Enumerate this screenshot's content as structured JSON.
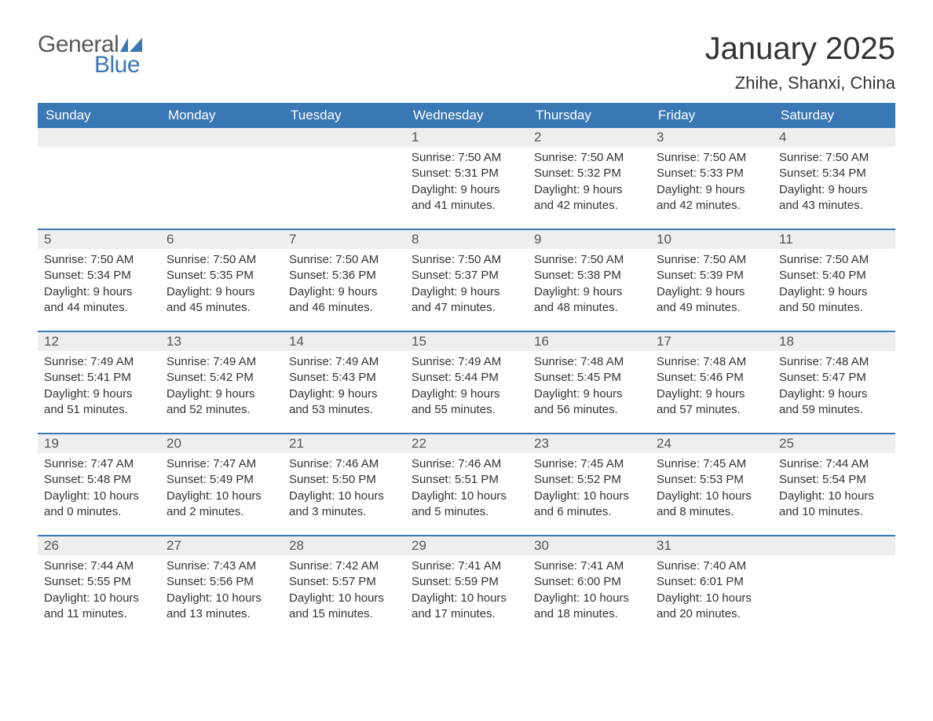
{
  "logo": {
    "text1": "General",
    "text2": "Blue",
    "color_general": "#5a5a5a",
    "color_blue": "#3a77b5"
  },
  "title": "January 2025",
  "location": "Zhihe, Shanxi, China",
  "colors": {
    "header_bg": "#3a77b5",
    "header_text": "#ffffff",
    "daynum_bg": "#eeeeee",
    "daynum_text": "#555555",
    "body_text": "#333333",
    "week_sep": "#3a77b5",
    "page_bg": "#ffffff"
  },
  "fonts": {
    "title_pt": 40,
    "location_pt": 22,
    "dayhead_pt": 17,
    "daynum_pt": 17,
    "body_pt": 15
  },
  "day_headers": [
    "Sunday",
    "Monday",
    "Tuesday",
    "Wednesday",
    "Thursday",
    "Friday",
    "Saturday"
  ],
  "weeks": [
    [
      {
        "day": "",
        "sunrise": "",
        "sunset": "",
        "daylight1": "",
        "daylight2": ""
      },
      {
        "day": "",
        "sunrise": "",
        "sunset": "",
        "daylight1": "",
        "daylight2": ""
      },
      {
        "day": "",
        "sunrise": "",
        "sunset": "",
        "daylight1": "",
        "daylight2": ""
      },
      {
        "day": "1",
        "sunrise": "Sunrise: 7:50 AM",
        "sunset": "Sunset: 5:31 PM",
        "daylight1": "Daylight: 9 hours",
        "daylight2": "and 41 minutes."
      },
      {
        "day": "2",
        "sunrise": "Sunrise: 7:50 AM",
        "sunset": "Sunset: 5:32 PM",
        "daylight1": "Daylight: 9 hours",
        "daylight2": "and 42 minutes."
      },
      {
        "day": "3",
        "sunrise": "Sunrise: 7:50 AM",
        "sunset": "Sunset: 5:33 PM",
        "daylight1": "Daylight: 9 hours",
        "daylight2": "and 42 minutes."
      },
      {
        "day": "4",
        "sunrise": "Sunrise: 7:50 AM",
        "sunset": "Sunset: 5:34 PM",
        "daylight1": "Daylight: 9 hours",
        "daylight2": "and 43 minutes."
      }
    ],
    [
      {
        "day": "5",
        "sunrise": "Sunrise: 7:50 AM",
        "sunset": "Sunset: 5:34 PM",
        "daylight1": "Daylight: 9 hours",
        "daylight2": "and 44 minutes."
      },
      {
        "day": "6",
        "sunrise": "Sunrise: 7:50 AM",
        "sunset": "Sunset: 5:35 PM",
        "daylight1": "Daylight: 9 hours",
        "daylight2": "and 45 minutes."
      },
      {
        "day": "7",
        "sunrise": "Sunrise: 7:50 AM",
        "sunset": "Sunset: 5:36 PM",
        "daylight1": "Daylight: 9 hours",
        "daylight2": "and 46 minutes."
      },
      {
        "day": "8",
        "sunrise": "Sunrise: 7:50 AM",
        "sunset": "Sunset: 5:37 PM",
        "daylight1": "Daylight: 9 hours",
        "daylight2": "and 47 minutes."
      },
      {
        "day": "9",
        "sunrise": "Sunrise: 7:50 AM",
        "sunset": "Sunset: 5:38 PM",
        "daylight1": "Daylight: 9 hours",
        "daylight2": "and 48 minutes."
      },
      {
        "day": "10",
        "sunrise": "Sunrise: 7:50 AM",
        "sunset": "Sunset: 5:39 PM",
        "daylight1": "Daylight: 9 hours",
        "daylight2": "and 49 minutes."
      },
      {
        "day": "11",
        "sunrise": "Sunrise: 7:50 AM",
        "sunset": "Sunset: 5:40 PM",
        "daylight1": "Daylight: 9 hours",
        "daylight2": "and 50 minutes."
      }
    ],
    [
      {
        "day": "12",
        "sunrise": "Sunrise: 7:49 AM",
        "sunset": "Sunset: 5:41 PM",
        "daylight1": "Daylight: 9 hours",
        "daylight2": "and 51 minutes."
      },
      {
        "day": "13",
        "sunrise": "Sunrise: 7:49 AM",
        "sunset": "Sunset: 5:42 PM",
        "daylight1": "Daylight: 9 hours",
        "daylight2": "and 52 minutes."
      },
      {
        "day": "14",
        "sunrise": "Sunrise: 7:49 AM",
        "sunset": "Sunset: 5:43 PM",
        "daylight1": "Daylight: 9 hours",
        "daylight2": "and 53 minutes."
      },
      {
        "day": "15",
        "sunrise": "Sunrise: 7:49 AM",
        "sunset": "Sunset: 5:44 PM",
        "daylight1": "Daylight: 9 hours",
        "daylight2": "and 55 minutes."
      },
      {
        "day": "16",
        "sunrise": "Sunrise: 7:48 AM",
        "sunset": "Sunset: 5:45 PM",
        "daylight1": "Daylight: 9 hours",
        "daylight2": "and 56 minutes."
      },
      {
        "day": "17",
        "sunrise": "Sunrise: 7:48 AM",
        "sunset": "Sunset: 5:46 PM",
        "daylight1": "Daylight: 9 hours",
        "daylight2": "and 57 minutes."
      },
      {
        "day": "18",
        "sunrise": "Sunrise: 7:48 AM",
        "sunset": "Sunset: 5:47 PM",
        "daylight1": "Daylight: 9 hours",
        "daylight2": "and 59 minutes."
      }
    ],
    [
      {
        "day": "19",
        "sunrise": "Sunrise: 7:47 AM",
        "sunset": "Sunset: 5:48 PM",
        "daylight1": "Daylight: 10 hours",
        "daylight2": "and 0 minutes."
      },
      {
        "day": "20",
        "sunrise": "Sunrise: 7:47 AM",
        "sunset": "Sunset: 5:49 PM",
        "daylight1": "Daylight: 10 hours",
        "daylight2": "and 2 minutes."
      },
      {
        "day": "21",
        "sunrise": "Sunrise: 7:46 AM",
        "sunset": "Sunset: 5:50 PM",
        "daylight1": "Daylight: 10 hours",
        "daylight2": "and 3 minutes."
      },
      {
        "day": "22",
        "sunrise": "Sunrise: 7:46 AM",
        "sunset": "Sunset: 5:51 PM",
        "daylight1": "Daylight: 10 hours",
        "daylight2": "and 5 minutes."
      },
      {
        "day": "23",
        "sunrise": "Sunrise: 7:45 AM",
        "sunset": "Sunset: 5:52 PM",
        "daylight1": "Daylight: 10 hours",
        "daylight2": "and 6 minutes."
      },
      {
        "day": "24",
        "sunrise": "Sunrise: 7:45 AM",
        "sunset": "Sunset: 5:53 PM",
        "daylight1": "Daylight: 10 hours",
        "daylight2": "and 8 minutes."
      },
      {
        "day": "25",
        "sunrise": "Sunrise: 7:44 AM",
        "sunset": "Sunset: 5:54 PM",
        "daylight1": "Daylight: 10 hours",
        "daylight2": "and 10 minutes."
      }
    ],
    [
      {
        "day": "26",
        "sunrise": "Sunrise: 7:44 AM",
        "sunset": "Sunset: 5:55 PM",
        "daylight1": "Daylight: 10 hours",
        "daylight2": "and 11 minutes."
      },
      {
        "day": "27",
        "sunrise": "Sunrise: 7:43 AM",
        "sunset": "Sunset: 5:56 PM",
        "daylight1": "Daylight: 10 hours",
        "daylight2": "and 13 minutes."
      },
      {
        "day": "28",
        "sunrise": "Sunrise: 7:42 AM",
        "sunset": "Sunset: 5:57 PM",
        "daylight1": "Daylight: 10 hours",
        "daylight2": "and 15 minutes."
      },
      {
        "day": "29",
        "sunrise": "Sunrise: 7:41 AM",
        "sunset": "Sunset: 5:59 PM",
        "daylight1": "Daylight: 10 hours",
        "daylight2": "and 17 minutes."
      },
      {
        "day": "30",
        "sunrise": "Sunrise: 7:41 AM",
        "sunset": "Sunset: 6:00 PM",
        "daylight1": "Daylight: 10 hours",
        "daylight2": "and 18 minutes."
      },
      {
        "day": "31",
        "sunrise": "Sunrise: 7:40 AM",
        "sunset": "Sunset: 6:01 PM",
        "daylight1": "Daylight: 10 hours",
        "daylight2": "and 20 minutes."
      },
      {
        "day": "",
        "sunrise": "",
        "sunset": "",
        "daylight1": "",
        "daylight2": ""
      }
    ]
  ]
}
